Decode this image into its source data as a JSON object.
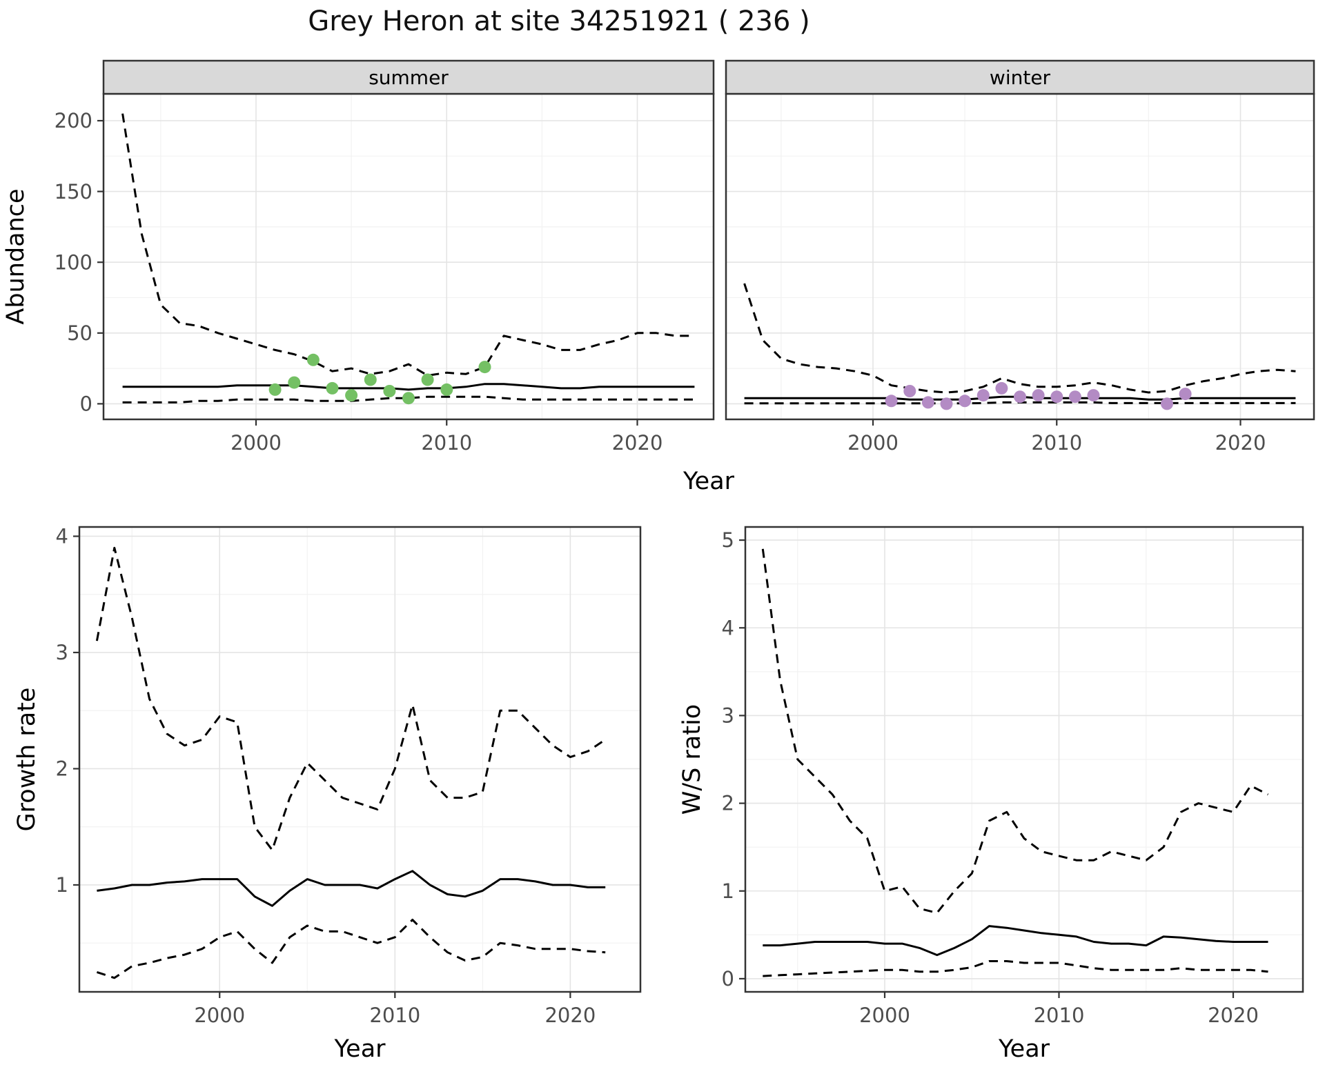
{
  "page": {
    "title": "Grey Heron at site 34251921 ( 236 )"
  },
  "chart_data": [
    {
      "id": "abundance-summer",
      "type": "line",
      "facet": "summer",
      "xlabel": "Year",
      "ylabel": "Abundance",
      "xlim": [
        1992,
        2024
      ],
      "ylim": [
        -11,
        219
      ],
      "xticks": [
        2000,
        2010,
        2020
      ],
      "yticks": [
        0,
        50,
        100,
        150,
        200
      ],
      "x": [
        1993,
        1994,
        1995,
        1996,
        1997,
        1998,
        1999,
        2000,
        2001,
        2002,
        2003,
        2004,
        2005,
        2006,
        2007,
        2008,
        2009,
        2010,
        2011,
        2012,
        2013,
        2014,
        2015,
        2016,
        2017,
        2018,
        2019,
        2020,
        2021,
        2022,
        2023
      ],
      "series": [
        {
          "name": "upper-95ci",
          "style": "dashed",
          "color": "#000000",
          "values": [
            205,
            120,
            70,
            57,
            55,
            50,
            46,
            42,
            38,
            35,
            30,
            23,
            25,
            21,
            23,
            28,
            20,
            22,
            21,
            26,
            48,
            45,
            42,
            38,
            38,
            42,
            45,
            50,
            50,
            48,
            48
          ]
        },
        {
          "name": "median",
          "style": "solid",
          "color": "#000000",
          "values": [
            12,
            12,
            12,
            12,
            12,
            12,
            13,
            13,
            13,
            13,
            12,
            11,
            11,
            11,
            11,
            10,
            11,
            11,
            12,
            14,
            14,
            13,
            12,
            11,
            11,
            12,
            12,
            12,
            12,
            12,
            12
          ]
        },
        {
          "name": "lower-95ci",
          "style": "dashed",
          "color": "#000000",
          "values": [
            1,
            1,
            1,
            1,
            2,
            2,
            3,
            3,
            3,
            3,
            2,
            2,
            2,
            3,
            4,
            4,
            5,
            5,
            5,
            5,
            4,
            3,
            3,
            3,
            3,
            3,
            3,
            3,
            3,
            3,
            3
          ]
        },
        {
          "name": "observed-counts",
          "style": "points",
          "color": "#74c064",
          "x": [
            2001,
            2002,
            2003,
            2004,
            2005,
            2006,
            2007,
            2008,
            2009,
            2010,
            2012
          ],
          "values": [
            10,
            15,
            31,
            11,
            6,
            17,
            9,
            4,
            17,
            10,
            26
          ]
        }
      ]
    },
    {
      "id": "abundance-winter",
      "type": "line",
      "facet": "winter",
      "xlabel": "Year",
      "ylabel": "Abundance",
      "xlim": [
        1992,
        2024
      ],
      "ylim": [
        -11,
        219
      ],
      "xticks": [
        2000,
        2010,
        2020
      ],
      "yticks": [
        0,
        50,
        100,
        150,
        200
      ],
      "x": [
        1993,
        1994,
        1995,
        1996,
        1997,
        1998,
        1999,
        2000,
        2001,
        2002,
        2003,
        2004,
        2005,
        2006,
        2007,
        2008,
        2009,
        2010,
        2011,
        2012,
        2013,
        2014,
        2015,
        2016,
        2017,
        2018,
        2019,
        2020,
        2021,
        2022,
        2023
      ],
      "series": [
        {
          "name": "upper-95ci",
          "style": "dashed",
          "color": "#000000",
          "values": [
            85,
            45,
            32,
            28,
            26,
            25,
            23,
            20,
            13,
            11,
            9,
            8,
            9,
            12,
            18,
            14,
            12,
            12,
            13,
            15,
            13,
            10,
            8,
            9,
            13,
            16,
            18,
            21,
            23,
            24,
            23
          ]
        },
        {
          "name": "median",
          "style": "solid",
          "color": "#000000",
          "values": [
            4,
            4,
            4,
            4,
            4,
            4,
            4,
            4,
            4,
            3,
            3,
            3,
            3,
            4,
            5,
            5,
            4,
            4,
            4,
            4,
            4,
            4,
            3,
            3,
            4,
            4,
            4,
            4,
            4,
            4,
            4
          ]
        },
        {
          "name": "lower-95ci",
          "style": "dashed",
          "color": "#000000",
          "values": [
            0.3,
            0.3,
            0.3,
            0.3,
            0.3,
            0.3,
            0.3,
            0.3,
            0.3,
            0.3,
            0.3,
            0.3,
            0.3,
            0.5,
            1,
            1,
            1,
            1,
            1,
            1,
            0.5,
            0.5,
            0.5,
            0.5,
            0.5,
            0.5,
            0.5,
            0.5,
            0.5,
            0.5,
            0.5
          ]
        },
        {
          "name": "observed-counts",
          "style": "points",
          "color": "#b38bc4",
          "x": [
            2001,
            2002,
            2003,
            2004,
            2005,
            2006,
            2007,
            2008,
            2009,
            2010,
            2011,
            2012,
            2016,
            2017
          ],
          "values": [
            2,
            9,
            1,
            0,
            2,
            6,
            11,
            5,
            6,
            5,
            5,
            6,
            0,
            7
          ]
        }
      ]
    },
    {
      "id": "growth-rate",
      "type": "line",
      "facet": "",
      "xlabel": "Year",
      "ylabel": "Growth rate",
      "xlim": [
        1992,
        2024
      ],
      "ylim": [
        0.08,
        4.08
      ],
      "xticks": [
        2000,
        2010,
        2020
      ],
      "yticks": [
        1,
        2,
        3,
        4
      ],
      "x": [
        1993,
        1994,
        1995,
        1996,
        1997,
        1998,
        1999,
        2000,
        2001,
        2002,
        2003,
        2004,
        2005,
        2006,
        2007,
        2008,
        2009,
        2010,
        2011,
        2012,
        2013,
        2014,
        2015,
        2016,
        2017,
        2018,
        2019,
        2020,
        2021,
        2022
      ],
      "series": [
        {
          "name": "upper-95ci",
          "style": "dashed",
          "color": "#000000",
          "values": [
            3.1,
            3.9,
            3.3,
            2.6,
            2.3,
            2.2,
            2.25,
            2.45,
            2.4,
            1.5,
            1.3,
            1.75,
            2.05,
            1.9,
            1.75,
            1.7,
            1.65,
            2.0,
            2.55,
            1.9,
            1.75,
            1.75,
            1.8,
            2.5,
            2.5,
            2.35,
            2.2,
            2.1,
            2.15,
            2.25
          ]
        },
        {
          "name": "median",
          "style": "solid",
          "color": "#000000",
          "values": [
            0.95,
            0.97,
            1.0,
            1.0,
            1.02,
            1.03,
            1.05,
            1.05,
            1.05,
            0.9,
            0.82,
            0.95,
            1.05,
            1.0,
            1.0,
            1.0,
            0.97,
            1.05,
            1.12,
            1.0,
            0.92,
            0.9,
            0.95,
            1.05,
            1.05,
            1.03,
            1.0,
            1.0,
            0.98,
            0.98
          ]
        },
        {
          "name": "lower-95ci",
          "style": "dashed",
          "color": "#000000",
          "values": [
            0.25,
            0.2,
            0.3,
            0.33,
            0.37,
            0.4,
            0.45,
            0.55,
            0.6,
            0.45,
            0.33,
            0.55,
            0.65,
            0.6,
            0.6,
            0.55,
            0.5,
            0.55,
            0.7,
            0.55,
            0.42,
            0.35,
            0.38,
            0.5,
            0.48,
            0.45,
            0.45,
            0.45,
            0.43,
            0.42
          ]
        }
      ]
    },
    {
      "id": "ws-ratio",
      "type": "line",
      "facet": "",
      "xlabel": "Year",
      "ylabel": "W/S ratio",
      "xlim": [
        1992,
        2024
      ],
      "ylim": [
        -0.15,
        5.15
      ],
      "xticks": [
        2000,
        2010,
        2020
      ],
      "yticks": [
        0,
        1,
        2,
        3,
        4,
        5
      ],
      "x": [
        1993,
        1994,
        1995,
        1996,
        1997,
        1998,
        1999,
        2000,
        2001,
        2002,
        2003,
        2004,
        2005,
        2006,
        2007,
        2008,
        2009,
        2010,
        2011,
        2012,
        2013,
        2014,
        2015,
        2016,
        2017,
        2018,
        2019,
        2020,
        2021,
        2022
      ],
      "series": [
        {
          "name": "upper-95ci",
          "style": "dashed",
          "color": "#000000",
          "values": [
            4.9,
            3.4,
            2.5,
            2.3,
            2.1,
            1.8,
            1.6,
            1.0,
            1.05,
            0.8,
            0.75,
            1.0,
            1.2,
            1.8,
            1.9,
            1.6,
            1.45,
            1.4,
            1.35,
            1.35,
            1.45,
            1.4,
            1.35,
            1.5,
            1.9,
            2.0,
            1.95,
            1.9,
            2.2,
            2.1
          ]
        },
        {
          "name": "median",
          "style": "solid",
          "color": "#000000",
          "values": [
            0.38,
            0.38,
            0.4,
            0.42,
            0.42,
            0.42,
            0.42,
            0.4,
            0.4,
            0.35,
            0.27,
            0.35,
            0.45,
            0.6,
            0.58,
            0.55,
            0.52,
            0.5,
            0.48,
            0.42,
            0.4,
            0.4,
            0.38,
            0.48,
            0.47,
            0.45,
            0.43,
            0.42,
            0.42,
            0.42
          ]
        },
        {
          "name": "lower-95ci",
          "style": "dashed",
          "color": "#000000",
          "values": [
            0.03,
            0.04,
            0.05,
            0.06,
            0.07,
            0.08,
            0.09,
            0.1,
            0.1,
            0.08,
            0.08,
            0.1,
            0.13,
            0.2,
            0.2,
            0.18,
            0.18,
            0.18,
            0.15,
            0.12,
            0.1,
            0.1,
            0.1,
            0.1,
            0.12,
            0.1,
            0.1,
            0.1,
            0.1,
            0.08
          ]
        }
      ]
    }
  ]
}
